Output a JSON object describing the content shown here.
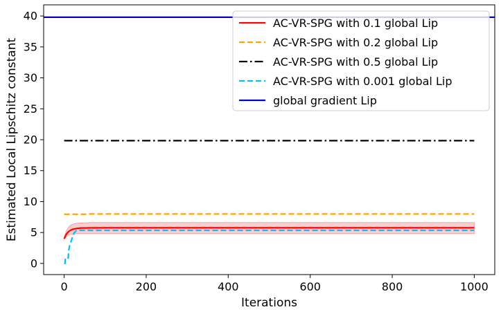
{
  "chart_data": {
    "type": "line",
    "xlabel": "Iterations",
    "ylabel": "Estimated Local Lipschitz constant",
    "xlim": [
      -50,
      1050
    ],
    "ylim": [
      -1.8,
      41.8
    ],
    "xticks": [
      0,
      200,
      400,
      600,
      800,
      1000
    ],
    "yticks": [
      0,
      5,
      10,
      15,
      20,
      25,
      30,
      35,
      40
    ],
    "grid": false,
    "legend_position": "top-right",
    "series": [
      {
        "name": "AC-VR-SPG with 0.1 global Lip",
        "color": "#ff0000",
        "style": "solid",
        "x": [
          0,
          2,
          5,
          10,
          15,
          20,
          30,
          40,
          60,
          100,
          200,
          400,
          600,
          800,
          1000
        ],
        "y": [
          4.0,
          4.3,
          4.7,
          5.1,
          5.35,
          5.5,
          5.65,
          5.72,
          5.75,
          5.76,
          5.76,
          5.76,
          5.76,
          5.76,
          5.76
        ],
        "band_low": [
          3.9,
          4.05,
          4.3,
          4.55,
          4.7,
          4.75,
          4.8,
          4.8,
          4.8,
          4.8,
          4.8,
          4.8,
          4.8,
          4.8,
          4.8
        ],
        "band_high": [
          4.1,
          4.6,
          5.2,
          5.8,
          6.15,
          6.35,
          6.5,
          6.55,
          6.6,
          6.6,
          6.6,
          6.6,
          6.6,
          6.6,
          6.6
        ],
        "band_color": "#f4a6a6"
      },
      {
        "name": "AC-VR-SPG with 0.2 global Lip",
        "color": "#ffa500",
        "style": "dashed",
        "x": [
          0,
          50,
          60,
          200,
          400,
          600,
          800,
          1000
        ],
        "y": [
          7.95,
          7.95,
          8.0,
          8.0,
          8.0,
          8.0,
          8.0,
          8.0
        ]
      },
      {
        "name": "AC-VR-SPG with 0.5 global Lip",
        "color": "#000000",
        "style": "dashdot",
        "x": [
          0,
          200,
          400,
          600,
          800,
          1000
        ],
        "y": [
          19.85,
          19.85,
          19.85,
          19.85,
          19.85,
          19.85
        ]
      },
      {
        "name": "AC-VR-SPG with 0.001 global Lip",
        "color": "#00bfff",
        "style": "dashed",
        "x": [
          0,
          2,
          3,
          10,
          11,
          13,
          17,
          20,
          22,
          25,
          28,
          30,
          200,
          400,
          600,
          800,
          1000
        ],
        "y": [
          0.0,
          0.0,
          0.9,
          0.9,
          2.0,
          2.8,
          3.6,
          4.2,
          4.6,
          5.0,
          5.2,
          5.35,
          5.35,
          5.35,
          5.35,
          5.35,
          5.35
        ]
      },
      {
        "name": "global gradient Lip",
        "color": "#0000cd",
        "style": "solid",
        "x": [
          -50,
          1050
        ],
        "y": [
          39.8,
          39.8
        ]
      }
    ]
  }
}
